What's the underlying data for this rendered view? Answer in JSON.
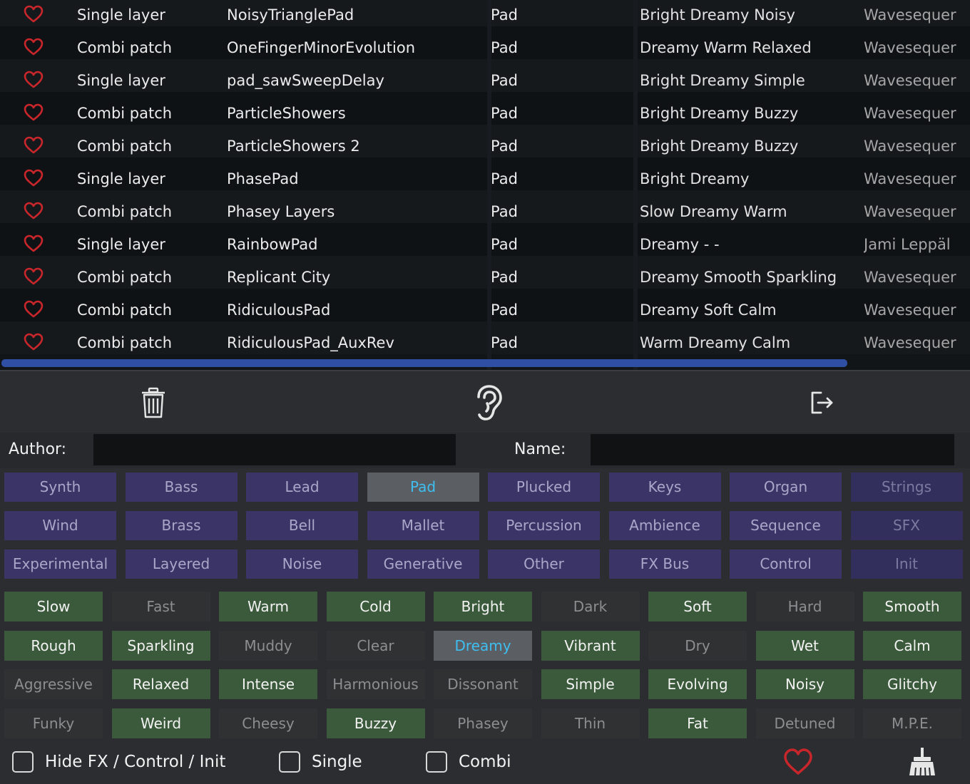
{
  "presets": [
    {
      "type": "Single layer",
      "name": "NoisyTrianglePad",
      "category": "Pad",
      "tags": "Bright Dreamy Noisy",
      "author": "Wavesequer"
    },
    {
      "type": "Combi patch",
      "name": "OneFingerMinorEvolution",
      "category": "Pad",
      "tags": "Dreamy Warm Relaxed",
      "author": "Wavesequer"
    },
    {
      "type": "Single layer",
      "name": "pad_sawSweepDelay",
      "category": "Pad",
      "tags": "Bright Dreamy Simple",
      "author": "Wavesequer"
    },
    {
      "type": "Combi patch",
      "name": "ParticleShowers",
      "category": "Pad",
      "tags": "Bright Dreamy Buzzy",
      "author": "Wavesequer"
    },
    {
      "type": "Combi patch",
      "name": "ParticleShowers 2",
      "category": "Pad",
      "tags": "Bright Dreamy Buzzy",
      "author": "Wavesequer"
    },
    {
      "type": "Single layer",
      "name": "PhasePad",
      "category": "Pad",
      "tags": "Bright Dreamy",
      "author": "Wavesequer"
    },
    {
      "type": "Combi patch",
      "name": "Phasey Layers",
      "category": "Pad",
      "tags": "Slow Dreamy Warm",
      "author": "Wavesequer"
    },
    {
      "type": "Single layer",
      "name": "RainbowPad",
      "category": "Pad",
      "tags": "Dreamy - -",
      "author": "Jami Leppäl"
    },
    {
      "type": "Combi patch",
      "name": "Replicant City",
      "category": "Pad",
      "tags": "Dreamy Smooth Sparkling",
      "author": "Wavesequer"
    },
    {
      "type": "Combi patch",
      "name": "RidiculousPad",
      "category": "Pad",
      "tags": "Dreamy Soft Calm",
      "author": "Wavesequer"
    },
    {
      "type": "Combi patch",
      "name": "RidiculousPad_AuxRev",
      "category": "Pad",
      "tags": "Warm Dreamy Calm",
      "author": "Wavesequer"
    }
  ],
  "toolbar": {
    "delete_icon": "trash-icon",
    "audition_icon": "ear-icon",
    "export_icon": "export-icon"
  },
  "fields": {
    "author_label": "Author:",
    "author_value": "",
    "name_label": "Name:",
    "name_value": ""
  },
  "categories": [
    {
      "label": "Synth",
      "state": "normal"
    },
    {
      "label": "Bass",
      "state": "normal"
    },
    {
      "label": "Lead",
      "state": "normal"
    },
    {
      "label": "Pad",
      "state": "selected"
    },
    {
      "label": "Plucked",
      "state": "normal"
    },
    {
      "label": "Keys",
      "state": "normal"
    },
    {
      "label": "Organ",
      "state": "normal"
    },
    {
      "label": "Strings",
      "state": "dim"
    },
    {
      "label": "Wind",
      "state": "normal"
    },
    {
      "label": "Brass",
      "state": "normal"
    },
    {
      "label": "Bell",
      "state": "normal"
    },
    {
      "label": "Mallet",
      "state": "normal"
    },
    {
      "label": "Percussion",
      "state": "normal"
    },
    {
      "label": "Ambience",
      "state": "normal"
    },
    {
      "label": "Sequence",
      "state": "normal"
    },
    {
      "label": "SFX",
      "state": "dim"
    },
    {
      "label": "Experimental",
      "state": "normal"
    },
    {
      "label": "Layered",
      "state": "normal"
    },
    {
      "label": "Noise",
      "state": "normal"
    },
    {
      "label": "Generative",
      "state": "normal"
    },
    {
      "label": "Other",
      "state": "normal"
    },
    {
      "label": "FX Bus",
      "state": "normal"
    },
    {
      "label": "Control",
      "state": "normal"
    },
    {
      "label": "Init",
      "state": "dim"
    }
  ],
  "descriptors": [
    {
      "label": "Slow",
      "state": "on"
    },
    {
      "label": "Fast",
      "state": "off"
    },
    {
      "label": "Warm",
      "state": "on"
    },
    {
      "label": "Cold",
      "state": "on"
    },
    {
      "label": "Bright",
      "state": "on"
    },
    {
      "label": "Dark",
      "state": "off"
    },
    {
      "label": "Soft",
      "state": "on"
    },
    {
      "label": "Hard",
      "state": "off"
    },
    {
      "label": "Smooth",
      "state": "on"
    },
    {
      "label": "Rough",
      "state": "on"
    },
    {
      "label": "Sparkling",
      "state": "on"
    },
    {
      "label": "Muddy",
      "state": "off"
    },
    {
      "label": "Clear",
      "state": "off"
    },
    {
      "label": "Dreamy",
      "state": "selected"
    },
    {
      "label": "Vibrant",
      "state": "on"
    },
    {
      "label": "Dry",
      "state": "off"
    },
    {
      "label": "Wet",
      "state": "on"
    },
    {
      "label": "Calm",
      "state": "on"
    },
    {
      "label": "Aggressive",
      "state": "off"
    },
    {
      "label": "Relaxed",
      "state": "on"
    },
    {
      "label": "Intense",
      "state": "on"
    },
    {
      "label": "Harmonious",
      "state": "off"
    },
    {
      "label": "Dissonant",
      "state": "off"
    },
    {
      "label": "Simple",
      "state": "on"
    },
    {
      "label": "Evolving",
      "state": "on"
    },
    {
      "label": "Noisy",
      "state": "on"
    },
    {
      "label": "Glitchy",
      "state": "on"
    },
    {
      "label": "Funky",
      "state": "off"
    },
    {
      "label": "Weird",
      "state": "on"
    },
    {
      "label": "Cheesy",
      "state": "off"
    },
    {
      "label": "Buzzy",
      "state": "on"
    },
    {
      "label": "Phasey",
      "state": "off"
    },
    {
      "label": "Thin",
      "state": "off"
    },
    {
      "label": "Fat",
      "state": "on"
    },
    {
      "label": "Detuned",
      "state": "off"
    },
    {
      "label": "M.P.E.",
      "state": "off"
    }
  ],
  "filters": {
    "hide_fx_label": "Hide FX / Control / Init",
    "single_label": "Single",
    "combi_label": "Combi",
    "favorites_icon": "heart-icon",
    "clear_icon": "broom-icon"
  },
  "colors": {
    "favorite": "#c8262b",
    "selected_text": "#3fbef0",
    "category_bg": "#3a3566",
    "descriptor_on_bg": "#3b5a3b",
    "scrollbar": "#2e4fa3"
  }
}
